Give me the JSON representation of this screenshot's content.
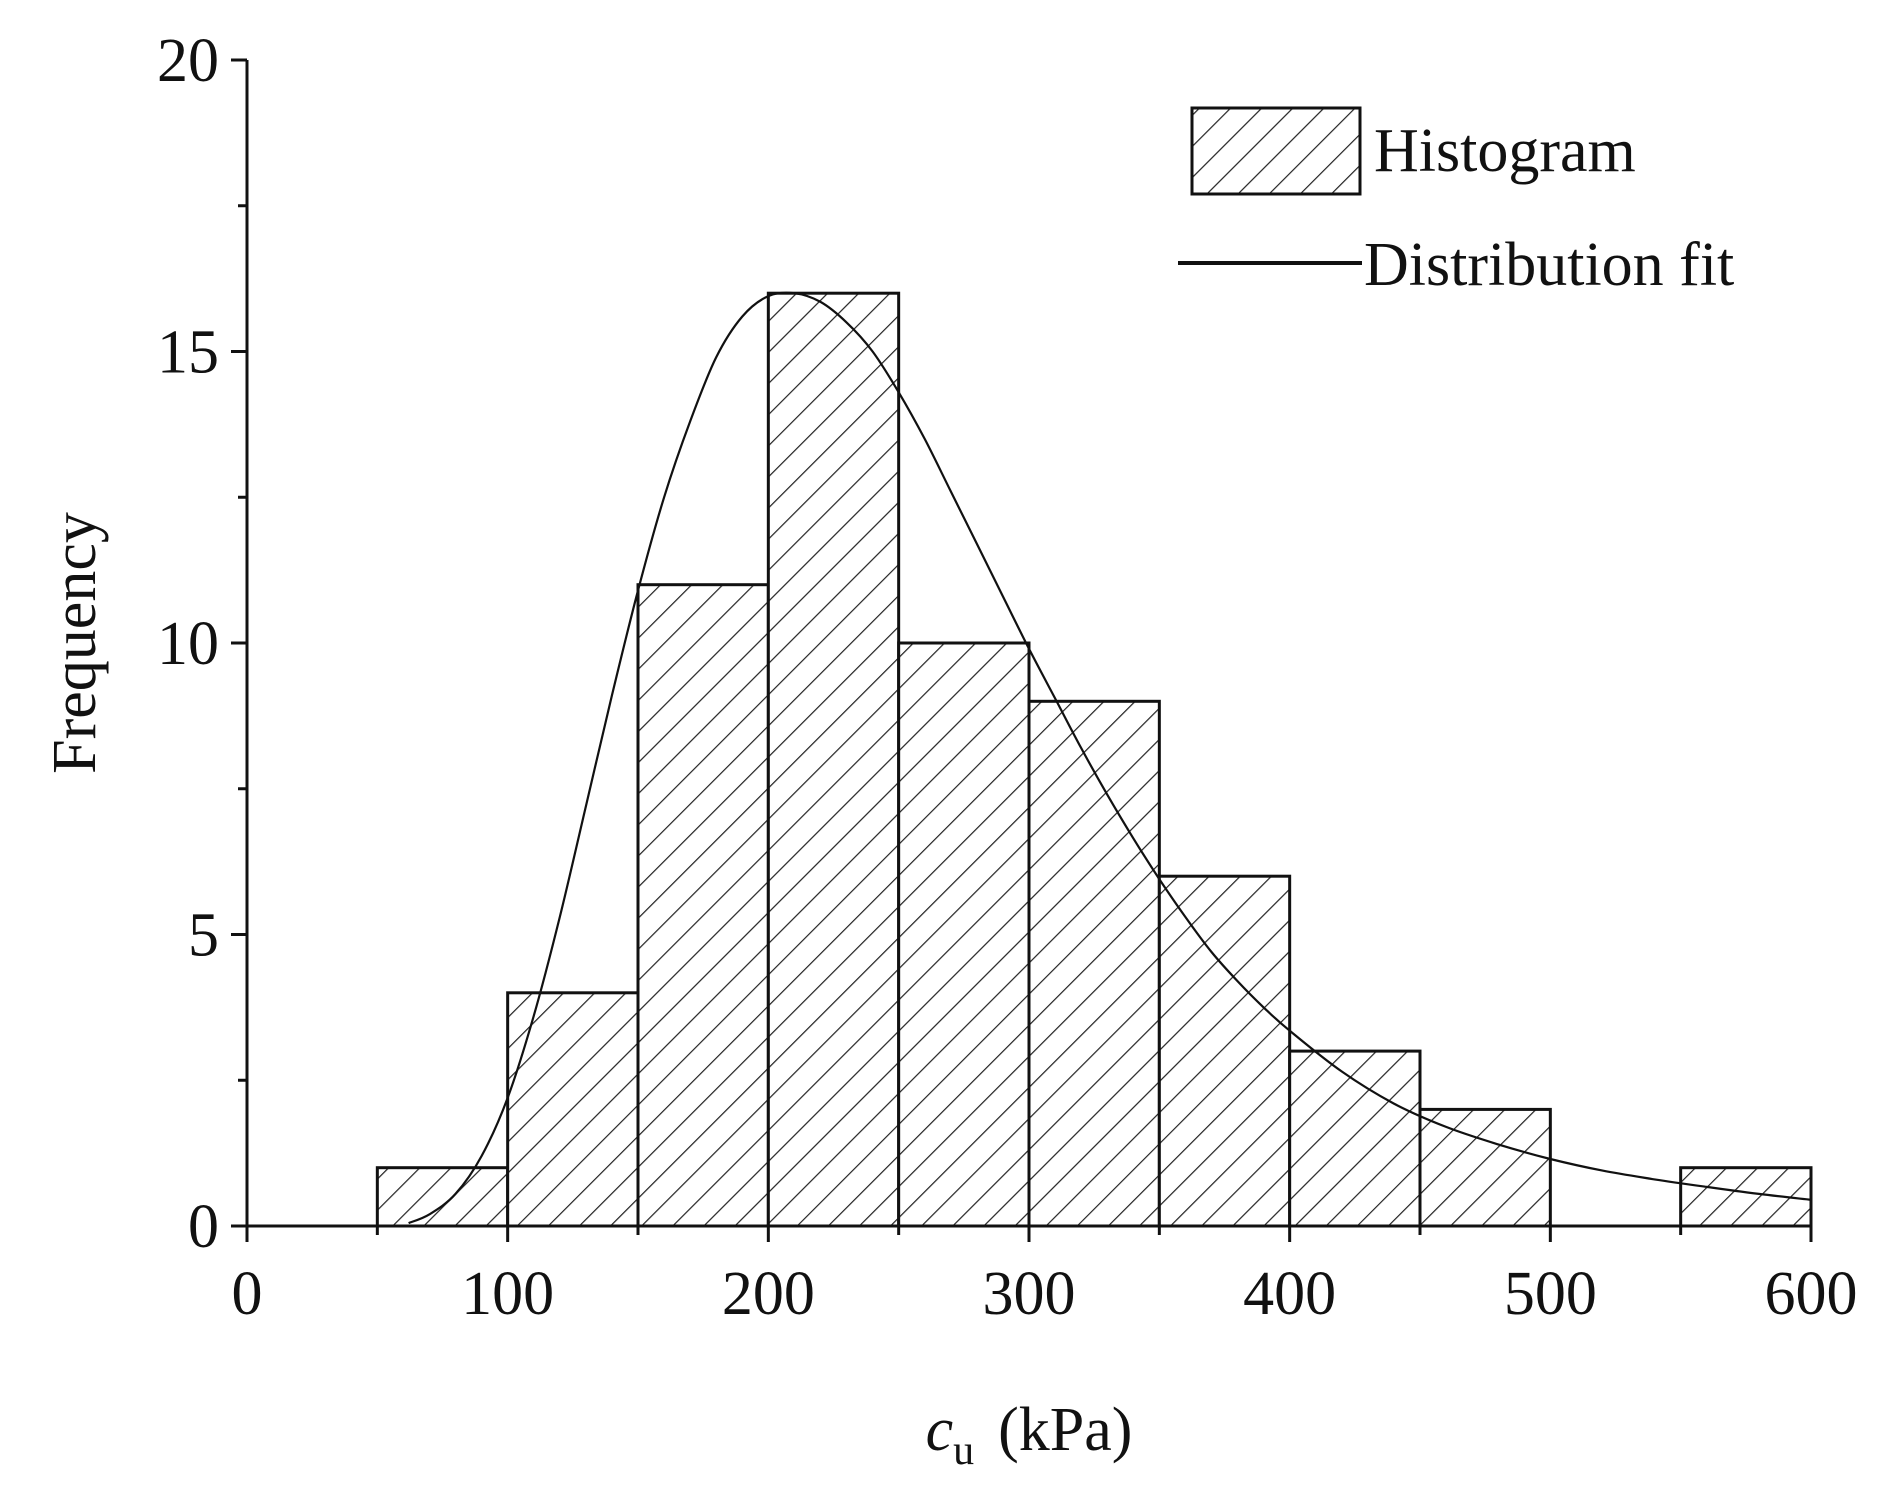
{
  "chart_data": {
    "type": "bar",
    "title": "",
    "xlabel": {
      "symbol": "c",
      "subscript": "u",
      "unit": "(kPa)"
    },
    "ylabel": "Frequency",
    "xlim": [
      0,
      600
    ],
    "ylim": [
      0,
      20
    ],
    "xticks": [
      0,
      100,
      200,
      300,
      400,
      500,
      600
    ],
    "yticks": [
      0,
      5,
      10,
      15,
      20
    ],
    "grid": false,
    "legend_position": "top-right",
    "series": [
      {
        "name": "Histogram",
        "type": "histogram",
        "bins": [
          {
            "x0": 50,
            "x1": 100,
            "count": 1
          },
          {
            "x0": 100,
            "x1": 150,
            "count": 4
          },
          {
            "x0": 150,
            "x1": 200,
            "count": 11
          },
          {
            "x0": 200,
            "x1": 250,
            "count": 16
          },
          {
            "x0": 250,
            "x1": 300,
            "count": 10
          },
          {
            "x0": 300,
            "x1": 350,
            "count": 9
          },
          {
            "x0": 350,
            "x1": 400,
            "count": 6
          },
          {
            "x0": 400,
            "x1": 450,
            "count": 3
          },
          {
            "x0": 450,
            "x1": 500,
            "count": 2
          },
          {
            "x0": 500,
            "x1": 550,
            "count": 0
          },
          {
            "x0": 550,
            "x1": 600,
            "count": 1
          }
        ]
      },
      {
        "name": "Distribution fit",
        "type": "line",
        "x": [
          62,
          70,
          80,
          90,
          100,
          110,
          120,
          130,
          140,
          150,
          160,
          170,
          180,
          190,
          200,
          210,
          220,
          230,
          240,
          250,
          260,
          270,
          280,
          290,
          300,
          310,
          320,
          330,
          340,
          350,
          360,
          370,
          380,
          390,
          400,
          420,
          440,
          460,
          480,
          500,
          520,
          540,
          560,
          580,
          600
        ],
        "y": [
          0.05,
          0.2,
          0.55,
          1.2,
          2.2,
          3.6,
          5.3,
          7.2,
          9.1,
          10.9,
          12.5,
          13.8,
          14.9,
          15.6,
          15.95,
          16.0,
          15.85,
          15.5,
          15.0,
          14.3,
          13.5,
          12.6,
          11.7,
          10.8,
          9.9,
          9.05,
          8.2,
          7.4,
          6.65,
          5.95,
          5.3,
          4.7,
          4.2,
          3.75,
          3.35,
          2.65,
          2.1,
          1.7,
          1.4,
          1.15,
          0.95,
          0.8,
          0.67,
          0.55,
          0.45
        ]
      }
    ]
  }
}
